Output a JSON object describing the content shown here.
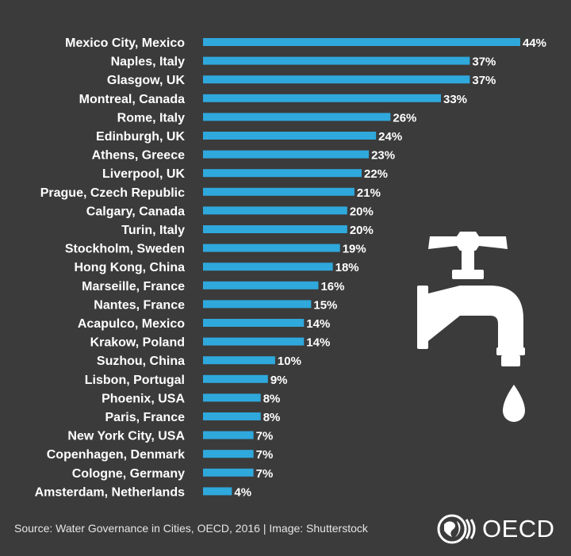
{
  "chart_data": {
    "type": "bar",
    "orientation": "horizontal",
    "categories": [
      "Mexico City, Mexico",
      "Naples, Italy",
      "Glasgow, UK",
      "Montreal, Canada",
      "Rome, Italy",
      "Edinburgh, UK",
      "Athens, Greece",
      "Liverpool, UK",
      "Prague, Czech Republic",
      "Calgary, Canada",
      "Turin, Italy",
      "Stockholm, Sweden",
      "Hong Kong, China",
      "Marseille, France",
      "Nantes, France",
      "Acapulco, Mexico",
      "Krakow, Poland",
      "Suzhou, China",
      "Lisbon, Portugal",
      "Phoenix, USA",
      "Paris, France",
      "New York City, USA",
      "Copenhagen, Denmark",
      "Cologne, Germany",
      "Amsterdam, Netherlands"
    ],
    "values": [
      44,
      37,
      37,
      33,
      26,
      24,
      23,
      22,
      21,
      20,
      20,
      19,
      18,
      16,
      15,
      14,
      14,
      10,
      9,
      8,
      8,
      7,
      7,
      7,
      4
    ],
    "value_suffix": "%",
    "xlim": [
      0,
      44
    ],
    "grid": false,
    "bar_color": "#2fa8dc",
    "background_color": "#3b3b3b"
  },
  "footer": {
    "source": "Source: Water Governance in Cities, OECD, 2016 | Image: Shutterstock",
    "logo_text": "OECD"
  },
  "icons": {
    "tap": "water-tap-icon",
    "drop": "water-drop-icon",
    "logo": "oecd-globe-icon"
  }
}
